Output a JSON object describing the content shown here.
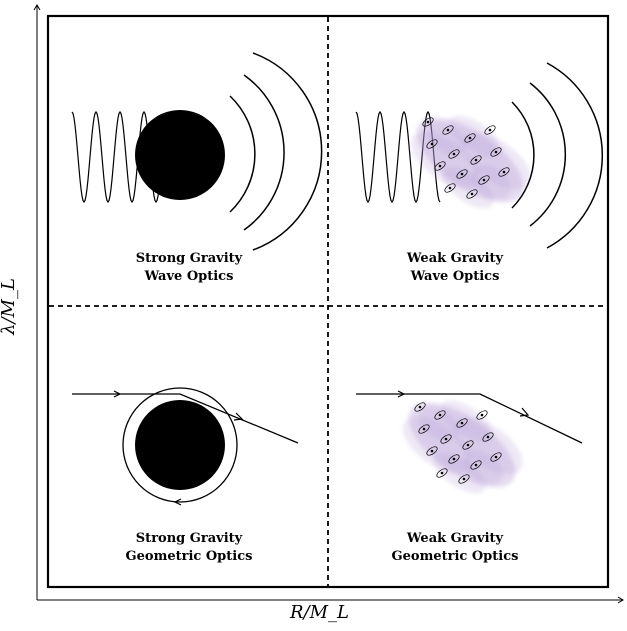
{
  "axes": {
    "x_label": "R/M_L",
    "y_label": "λ/M_L"
  },
  "quadrants": {
    "top_left": {
      "line1": "Strong Gravity",
      "line2": "Wave Optics"
    },
    "top_right": {
      "line1": "Weak Gravity",
      "line2": "Wave Optics"
    },
    "bottom_left": {
      "line1": "Strong Gravity",
      "line2": "Geometric Optics"
    },
    "bottom_right": {
      "line1": "Weak Gravity",
      "line2": "Geometric Optics"
    }
  },
  "colors": {
    "ink": "#000000",
    "cloud": "#b49ad6"
  }
}
